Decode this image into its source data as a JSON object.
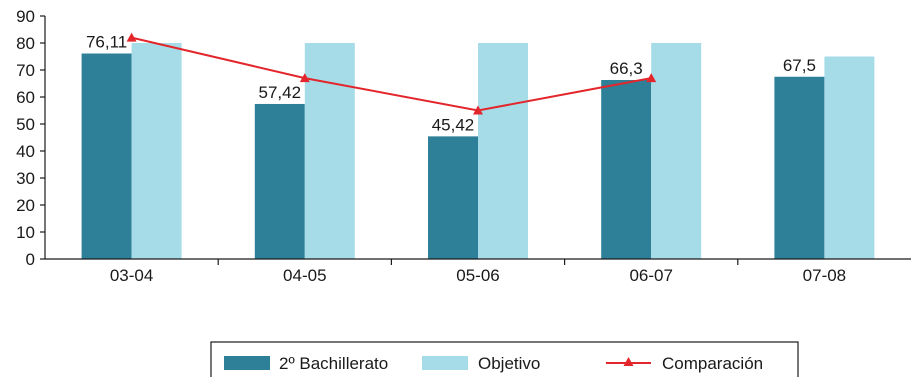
{
  "chart_data": {
    "type": "bar",
    "categories": [
      "03-04",
      "04-05",
      "05-06",
      "06-07",
      "07-08"
    ],
    "ylim": [
      0,
      90
    ],
    "yticks": [
      0,
      10,
      20,
      30,
      40,
      50,
      60,
      70,
      80,
      90
    ],
    "series": [
      {
        "name": "2º Bachillerato",
        "kind": "bar",
        "color": "#2e8099",
        "values": [
          76.11,
          57.42,
          45.42,
          66.3,
          67.5
        ]
      },
      {
        "name": "Objetivo",
        "kind": "bar",
        "color": "#a6dbe8",
        "values": [
          80,
          80,
          80,
          80,
          75
        ]
      },
      {
        "name": "Comparación",
        "kind": "line",
        "marker": "triangle",
        "color": "#e3262b",
        "values": [
          82,
          67,
          55,
          67,
          null
        ]
      }
    ],
    "data_labels": [
      "76,11",
      "57,42",
      "45,42",
      "66,3",
      "67,5"
    ],
    "legend_position": "bottom",
    "grid": false
  }
}
